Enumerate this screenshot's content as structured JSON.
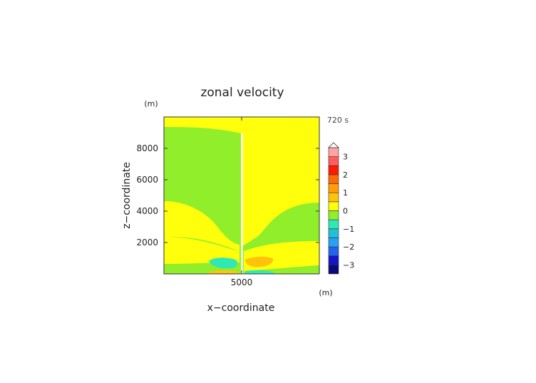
{
  "chart_data": {
    "type": "heatmap",
    "title": "zonal velocity",
    "xlabel": "x−coordinate",
    "ylabel": "z−coordinate",
    "x_unit": "(m)",
    "y_unit": "(m)",
    "time_label": "720 s",
    "xlim": [
      0,
      10000
    ],
    "ylim": [
      0,
      10000
    ],
    "x_ticks": [
      5000
    ],
    "x_tick_labels": [
      "5000"
    ],
    "y_ticks": [
      2000,
      4000,
      6000,
      8000
    ],
    "y_tick_labels": [
      "2000",
      "4000",
      "6000",
      "8000"
    ],
    "colorbar": {
      "levels": [
        -3.5,
        -3,
        -2.5,
        -2,
        -1.5,
        -1,
        -0.5,
        0,
        0.5,
        1,
        1.5,
        2,
        2.5,
        3,
        3.5
      ],
      "colors": [
        "#0a0a78",
        "#1414c8",
        "#1f64f0",
        "#2aa0f0",
        "#20c0d8",
        "#30e8b4",
        "#90ee2a",
        "#ffff0c",
        "#ffc40a",
        "#ff9c08",
        "#ff6a06",
        "#ff1a04",
        "#ff5c5c",
        "#ffa4a4"
      ],
      "over_color": "#ffffff",
      "tick_values": [
        -3,
        -2,
        -1,
        0,
        1,
        2,
        3
      ],
      "tick_labels": [
        "−3",
        "−2",
        "−1",
        "0",
        "1",
        "2",
        "3"
      ]
    },
    "field_regions": [
      {
        "label": "green",
        "value": -0.25,
        "color": "#90ee2a"
      },
      {
        "label": "yellow",
        "value": 0.25,
        "color": "#ffff0c"
      },
      {
        "label": "cyan",
        "value": -0.75,
        "color": "#30e8b4"
      },
      {
        "label": "orange",
        "value": 0.75,
        "color": "#ffc40a"
      },
      {
        "label": "center line",
        "value": 0.0,
        "color": "#ffffff"
      }
    ]
  }
}
